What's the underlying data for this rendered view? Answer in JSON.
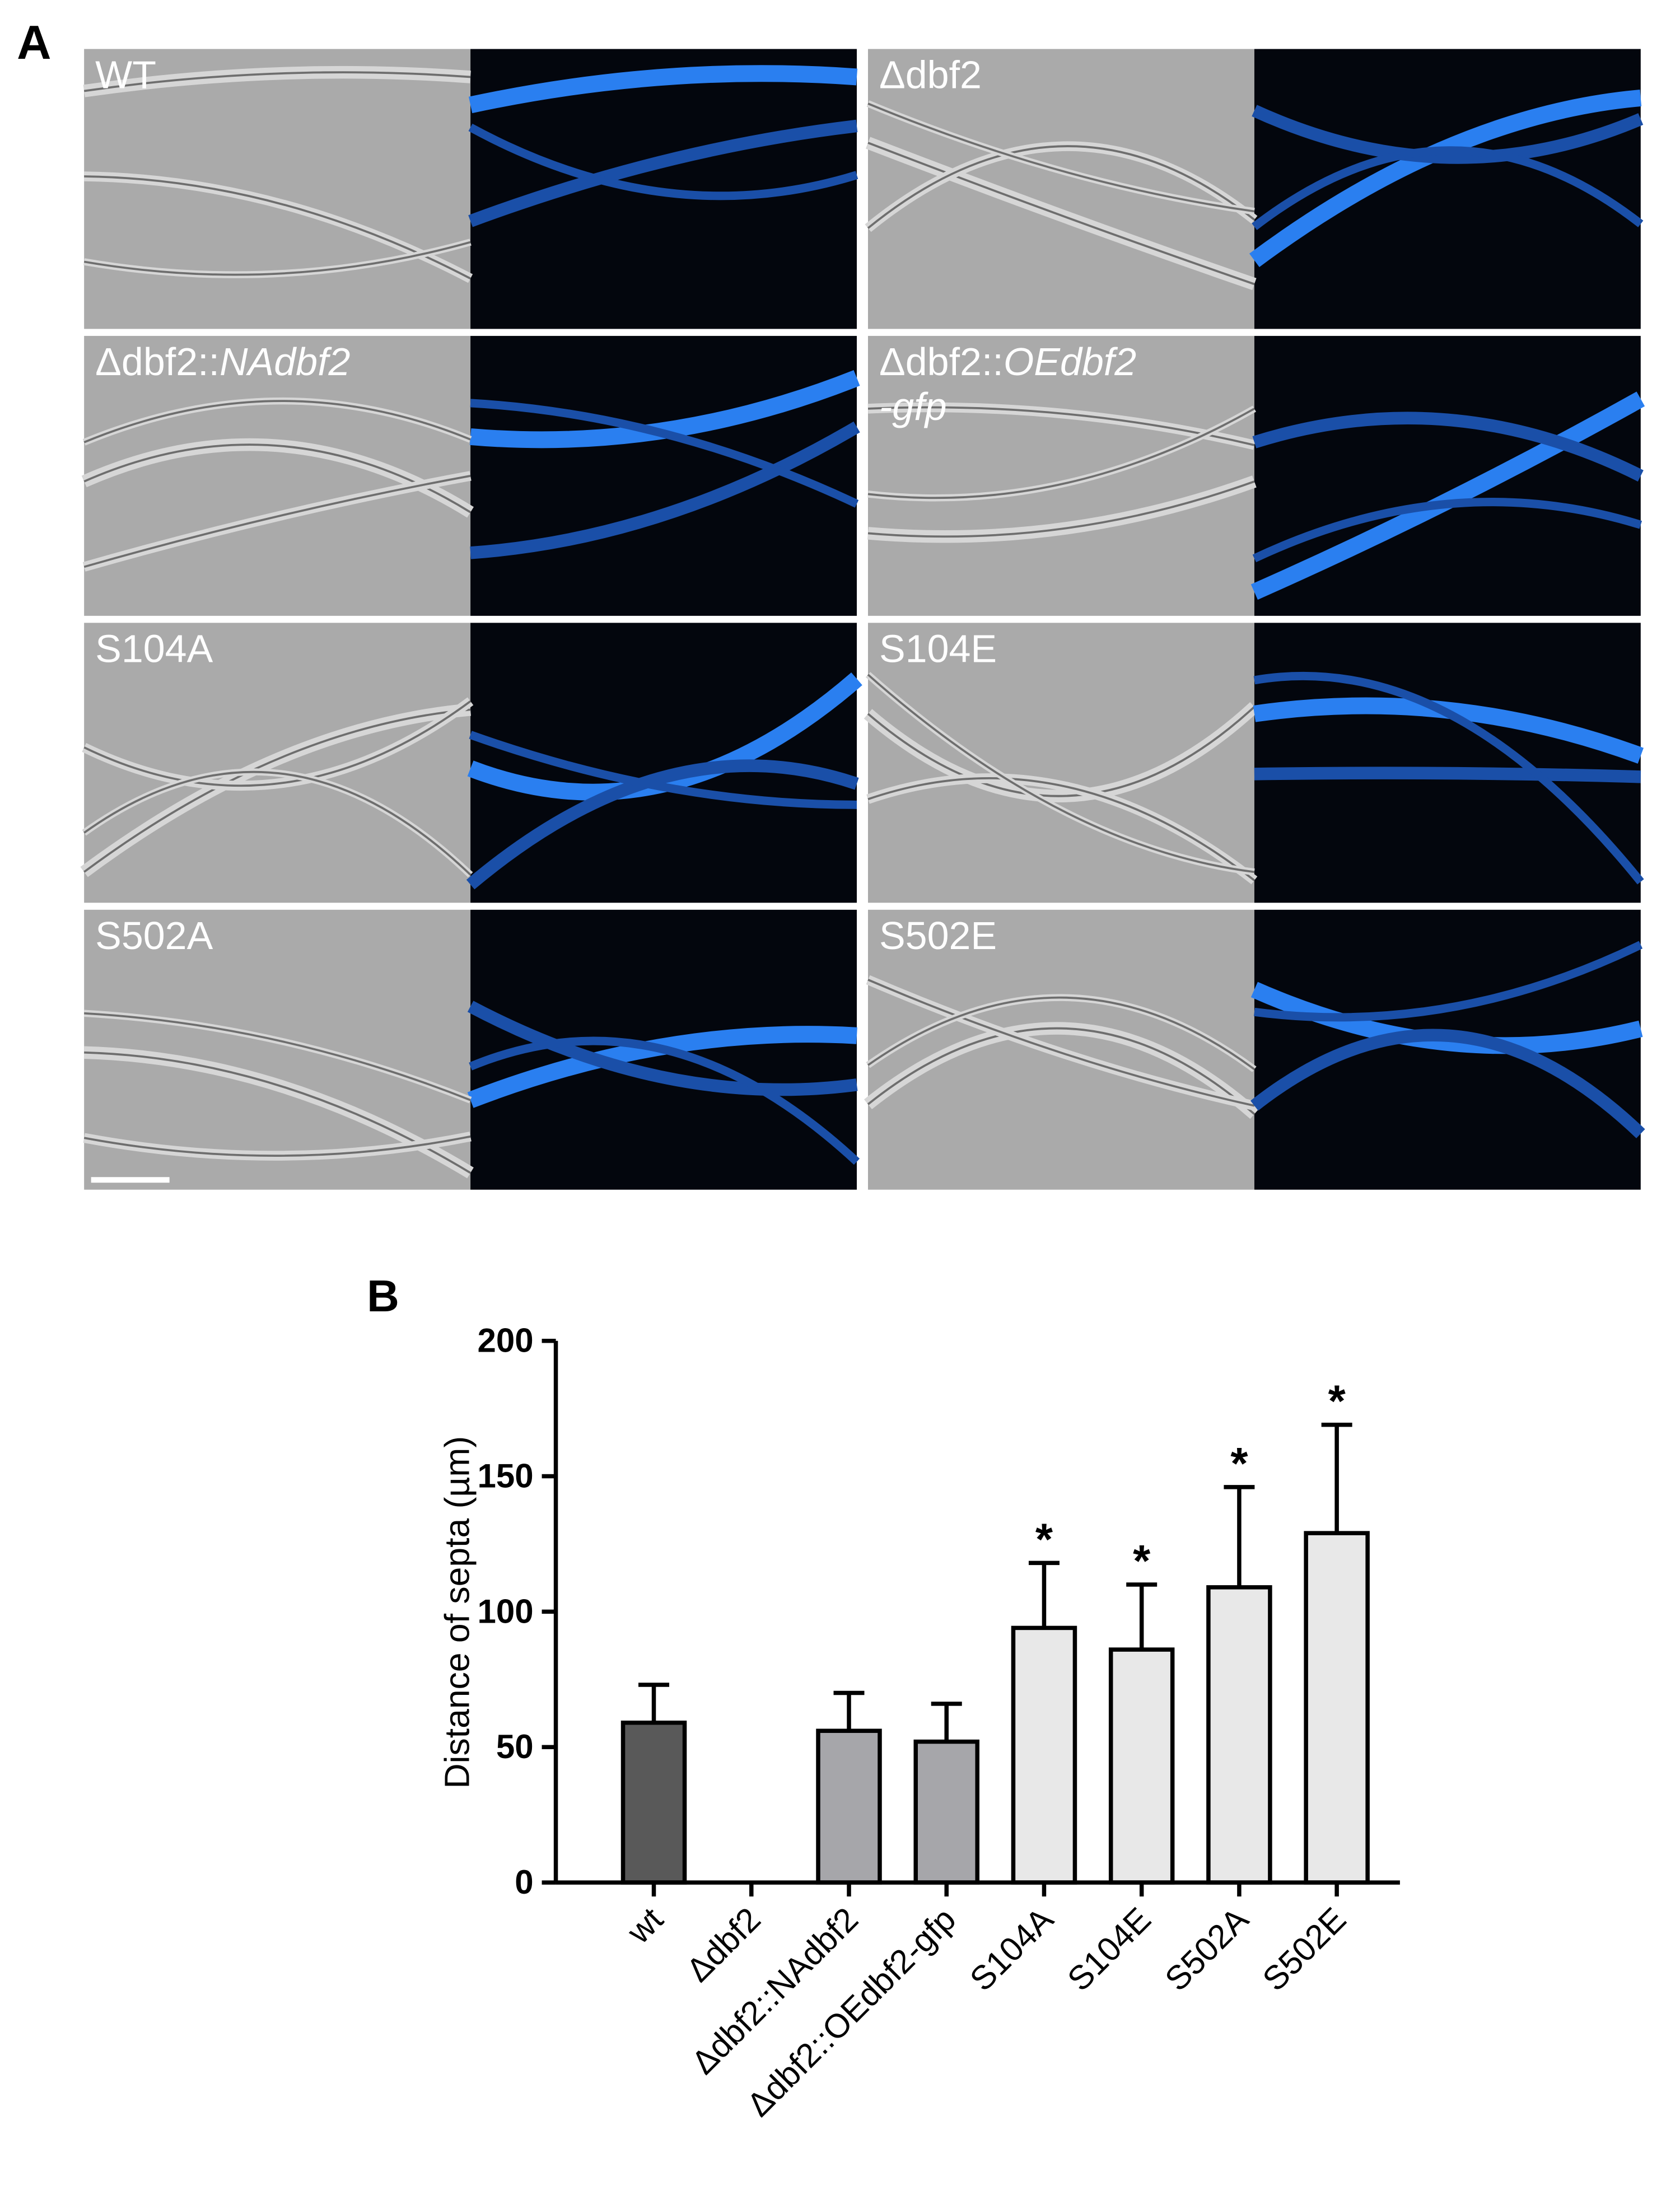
{
  "panel_a": {
    "label": "A",
    "panels": [
      {
        "label": "WT"
      },
      {
        "label": "Δdbf2"
      },
      {
        "label": "Δdbf2::",
        "label_italic": "NAdbf2"
      },
      {
        "label": "Δdbf2::",
        "label_italic": "OEdbf2",
        "label_line2": "-gfp"
      },
      {
        "label": "S104A"
      },
      {
        "label": "S104E"
      },
      {
        "label": "S502A"
      },
      {
        "label": "S502E"
      }
    ]
  },
  "chart_data": {
    "type": "bar",
    "panel_label": "B",
    "y_label": "Distance of septa (µm)",
    "categories": [
      "wt",
      "Δdbf2",
      "Δdbf2::NAdbf2",
      "Δdbf2::OEdbf2-gfp",
      "S104A",
      "S104E",
      "S502A",
      "S502E"
    ],
    "values": [
      59,
      0,
      56,
      52,
      94,
      86,
      109,
      129
    ],
    "errors": [
      14,
      0,
      14,
      14,
      24,
      24,
      37,
      40
    ],
    "colors": [
      "#595959",
      "#595959",
      "#a6a6aa",
      "#a6a6aa",
      "#e8e8e8",
      "#e8e8e8",
      "#e8e8e8",
      "#e8e8e8"
    ],
    "significance": [
      null,
      null,
      null,
      null,
      "*",
      "*",
      "*",
      "*"
    ],
    "ylim": [
      0,
      200
    ],
    "yticks": [
      0,
      50,
      100,
      150,
      200
    ]
  }
}
